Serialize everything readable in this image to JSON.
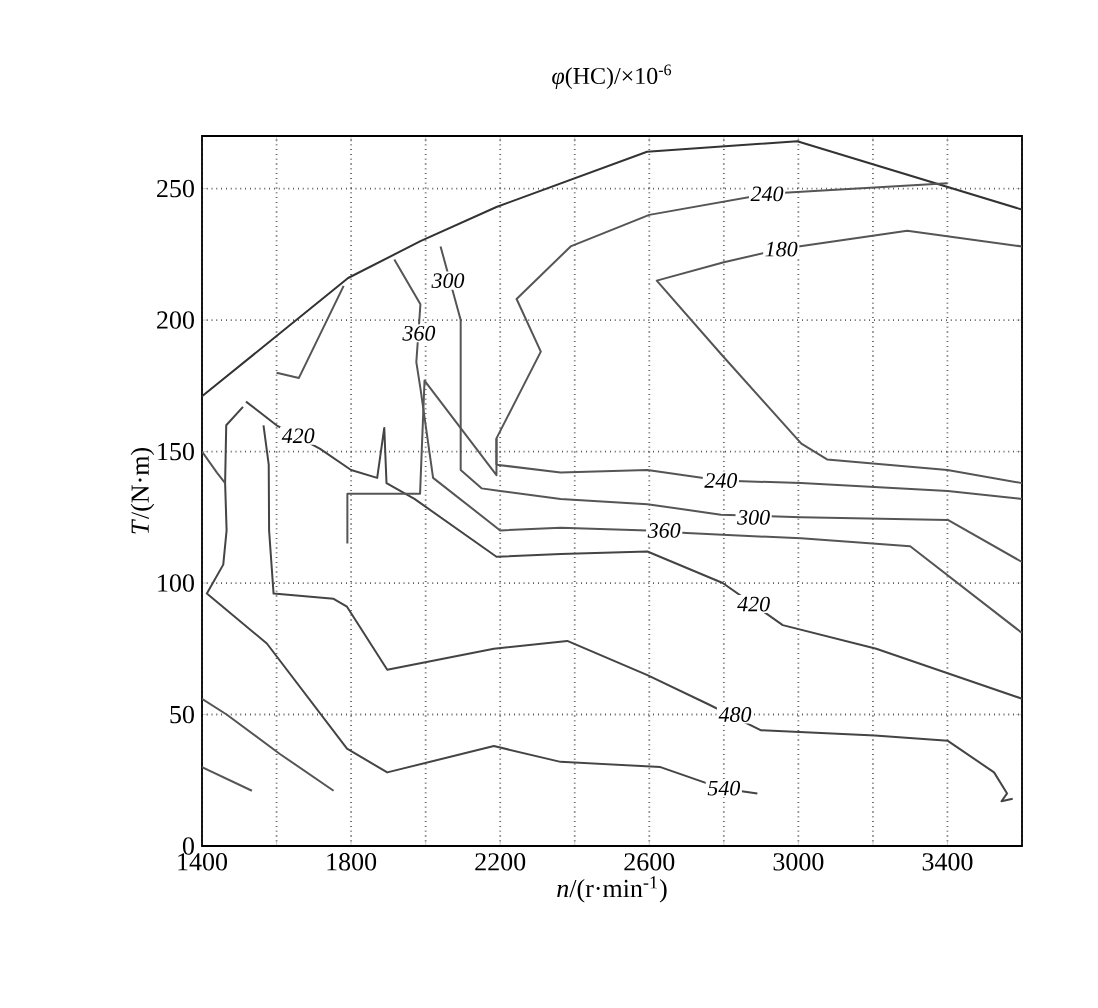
{
  "chart_data": {
    "type": "line",
    "title": "*φ*(HC)/×10$^{-6}$",
    "xlabel": "*n*/(r·min$^{-1}$)",
    "ylabel": "*T*/(N·m)",
    "xlim": [
      1400,
      3600
    ],
    "ylim": [
      0,
      270
    ],
    "xticks": [
      1400,
      {
        "value": 1600,
        "label": null
      },
      1800,
      {
        "value": 2000,
        "label": null
      },
      2200,
      {
        "value": 2400,
        "label": null
      },
      2600,
      {
        "value": 2800,
        "label": null
      },
      3000,
      {
        "value": 3200,
        "label": null
      },
      3400,
      {
        "value": 3600,
        "label": null
      }
    ],
    "yticks": [
      0,
      50,
      100,
      150,
      200,
      250
    ],
    "grid": true,
    "line_style": "solid",
    "marker": "none",
    "series": [
      {
        "color": "#333333",
        "x": [
          1400,
          1792,
          1986,
          2190,
          2594,
          2997,
          3600
        ],
        "values": [
          171,
          216,
          230,
          243,
          264,
          268,
          242
        ]
      },
      {
        "color": "#555555",
        "x": [
          2190,
          2190,
          2309,
          2244,
          2389,
          2600,
          2916,
          3400
        ],
        "values": [
          145,
          155,
          188,
          208,
          228,
          240,
          248,
          252
        ]
      },
      {
        "color": "#555555",
        "x": [
          3600,
          3400,
          3077,
          3008,
          2793,
          2620,
          2800,
          2954,
          3292,
          3600
        ],
        "values": [
          138,
          143,
          147,
          153,
          187,
          215,
          222,
          227,
          234,
          228
        ]
      },
      {
        "color": "#555555",
        "x": [
          2190,
          2362,
          2595,
          2792,
          3007,
          3401,
          3600
        ],
        "values": [
          145,
          142,
          143,
          139,
          138,
          135,
          132
        ]
      },
      {
        "color": "#555555",
        "x": [
          2040,
          2094,
          2094,
          2150,
          2200,
          2362,
          2595,
          2792,
          3007,
          3401,
          3600
        ],
        "values": [
          228,
          200,
          143,
          136,
          135,
          132,
          130,
          126,
          125,
          124,
          108
        ]
      },
      {
        "color": "#555555",
        "x": [
          1916,
          1986,
          1975,
          1986,
          2020,
          2200,
          2362,
          2595,
          2700,
          3007,
          3300,
          3600
        ],
        "values": [
          223,
          206,
          184,
          174,
          140,
          120,
          121,
          120,
          119,
          117,
          114,
          81
        ]
      },
      {
        "color": "#444444",
        "x": [
          1518,
          1600,
          1717,
          1800,
          1870,
          1889,
          1895,
          1970,
          2190,
          2362,
          2595,
          2797,
          2958,
          3209,
          3600
        ],
        "values": [
          169,
          160,
          151,
          143,
          140,
          159,
          138,
          132,
          110,
          111,
          112,
          100,
          84,
          75,
          56
        ]
      },
      {
        "color": "#444444",
        "x": [
          1565,
          1579,
          1580,
          1592,
          1753,
          1789,
          1897,
          2183,
          2380,
          2595,
          2757,
          2900,
          3205,
          3401,
          3525,
          3560,
          3545,
          3575
        ],
        "values": [
          160,
          145,
          120,
          96,
          94,
          91,
          67,
          75,
          78,
          65,
          54,
          44,
          42,
          40,
          28,
          20,
          17,
          18
        ]
      },
      {
        "color": "#444444",
        "x": [
          1510,
          1465,
          1462,
          1466,
          1457,
          1413,
          1574,
          1789,
          1897,
          2183,
          2362,
          2630,
          2792,
          2890
        ],
        "values": [
          167,
          160,
          138,
          120,
          107,
          96,
          77,
          37,
          28,
          38,
          32,
          30,
          22,
          20
        ]
      },
      {
        "color": "#555555",
        "x": [
          1400,
          1440,
          1462
        ],
        "values": [
          150,
          142,
          138
        ]
      },
      {
        "color": "#555555",
        "x": [
          1400,
          1466,
          1609,
          1753
        ],
        "values": [
          56,
          50,
          35,
          21
        ]
      },
      {
        "color": "#555555",
        "x": [
          1400,
          1534
        ],
        "values": [
          30,
          21
        ]
      },
      {
        "color": "#555555",
        "x": [
          1600,
          1660,
          1780
        ],
        "values": [
          180,
          178,
          213
        ]
      },
      {
        "color": "#555555",
        "x": [
          1790,
          1790,
          1985,
          1997,
          2190,
          2190
        ],
        "values": [
          115,
          134,
          134,
          177,
          141,
          155
        ]
      }
    ],
    "annotations": [
      {
        "text": "240",
        "x": 2916,
        "y": 248
      },
      {
        "text": "180",
        "x": 2954,
        "y": 227
      },
      {
        "text": "300",
        "x": 2060,
        "y": 215
      },
      {
        "text": "360",
        "x": 1982,
        "y": 195
      },
      {
        "text": "420",
        "x": 1658,
        "y": 156
      },
      {
        "text": "240",
        "x": 2792,
        "y": 139
      },
      {
        "text": "300",
        "x": 2880,
        "y": 125
      },
      {
        "text": "360",
        "x": 2640,
        "y": 120
      },
      {
        "text": "420",
        "x": 2880,
        "y": 92
      },
      {
        "text": "480",
        "x": 2830,
        "y": 50
      },
      {
        "text": "540",
        "x": 2800,
        "y": 22
      }
    ]
  }
}
